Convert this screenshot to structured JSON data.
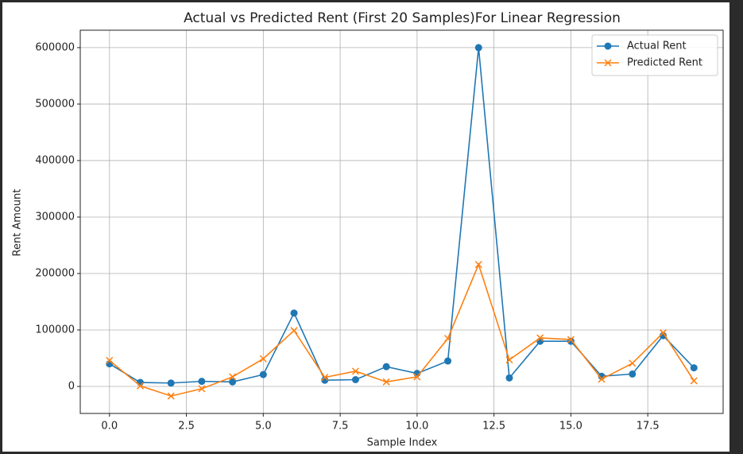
{
  "chart_data": {
    "type": "line",
    "title": "Actual vs Predicted Rent (First 20 Samples)For Linear Regression",
    "x_label": "Sample Index",
    "y_label": "Rent Amount",
    "x": [
      0,
      1,
      2,
      3,
      4,
      5,
      6,
      7,
      8,
      9,
      10,
      11,
      12,
      13,
      14,
      15,
      16,
      17,
      18,
      19
    ],
    "series": [
      {
        "name": "Actual Rent",
        "color": "#1f77b4",
        "marker": "o",
        "values": [
          40000,
          7000,
          6000,
          9000,
          8000,
          21000,
          130000,
          11000,
          12000,
          35000,
          23000,
          45000,
          600000,
          15000,
          80000,
          80000,
          18000,
          22000,
          90000,
          33000
        ]
      },
      {
        "name": "Predicted Rent",
        "color": "#ff7f0e",
        "marker": "x",
        "values": [
          46000,
          1000,
          -17000,
          -4000,
          17000,
          49000,
          99000,
          16000,
          27000,
          8000,
          17000,
          85000,
          216000,
          47000,
          86000,
          83000,
          13000,
          41000,
          95000,
          10000
        ]
      }
    ],
    "xlim": [
      -0.95,
      19.95
    ],
    "ylim": [
      -47850,
      630850
    ],
    "xticks": [
      {
        "value": 0,
        "label": "0.0"
      },
      {
        "value": 2.5,
        "label": "2.5"
      },
      {
        "value": 5,
        "label": "5.0"
      },
      {
        "value": 7.5,
        "label": "7.5"
      },
      {
        "value": 10,
        "label": "10.0"
      },
      {
        "value": 12.5,
        "label": "12.5"
      },
      {
        "value": 15,
        "label": "15.0"
      },
      {
        "value": 17.5,
        "label": "17.5"
      }
    ],
    "yticks": [
      0,
      100000,
      200000,
      300000,
      400000,
      500000,
      600000
    ],
    "grid": true,
    "legend": "upper right"
  }
}
